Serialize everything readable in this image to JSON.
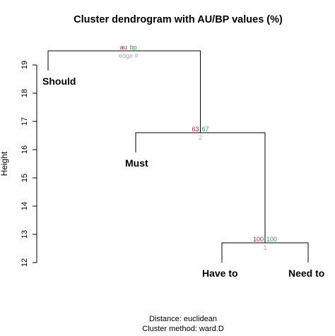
{
  "colors": {
    "au": "#c8193c",
    "bp": "#22a04a",
    "edge": "#a8a8a8",
    "line": "#000000"
  },
  "chart_data": {
    "type": "dendrogram",
    "title": "Cluster dendrogram with AU/BP values (%)",
    "ylabel": "Height",
    "ylim": [
      12,
      19.8
    ],
    "yticks": [
      "12",
      "13",
      "14",
      "15",
      "16",
      "17",
      "18",
      "19"
    ],
    "leaves": [
      "Should",
      "Must",
      "Have to",
      "Need to"
    ],
    "merges": [
      {
        "edge": "1",
        "height": 12.7,
        "left": "Have to",
        "right": "Need to",
        "au": "100",
        "bp": "100"
      },
      {
        "edge": "2",
        "height": 16.6,
        "left": "Must",
        "right": "edge 1",
        "au": "63",
        "bp": "67"
      },
      {
        "edge": "3",
        "height": 19.5,
        "left": "Should",
        "right": "edge 2",
        "au": "au",
        "bp": "bp",
        "edge_label": "edge #"
      }
    ],
    "leaf_heights": {
      "Should": 18.8,
      "Must": 15.9,
      "Have to": 12.0,
      "Need to": 12.0
    },
    "footer": [
      "Distance:  euclidean",
      "Cluster method: ward.D"
    ]
  }
}
